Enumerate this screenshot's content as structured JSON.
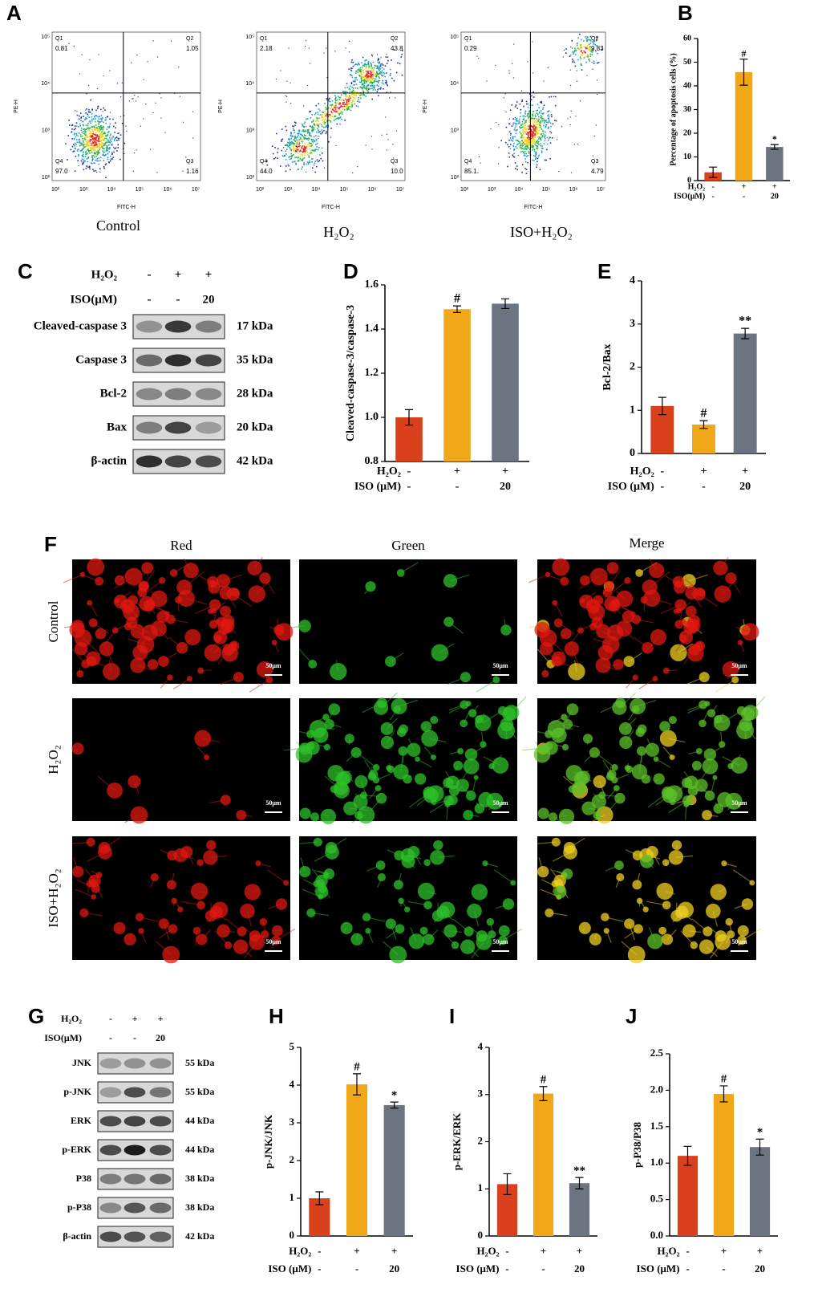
{
  "panel_labels": [
    "A",
    "B",
    "C",
    "D",
    "E",
    "F",
    "G",
    "H",
    "I",
    "J"
  ],
  "flow": {
    "x_label": "FITC-H",
    "y_label": "PE-H",
    "x_ticks": [
      "10²",
      "10³",
      "10⁴",
      "10⁵",
      "10⁶",
      "10⁷"
    ],
    "y_ticks": [
      "10²",
      "10³",
      "10⁴",
      "10⁵"
    ],
    "plots": [
      {
        "name": "Control",
        "quadrants": [
          {
            "id": "Q1",
            "value": "0.81"
          },
          {
            "id": "Q2",
            "value": "1.05"
          },
          {
            "id": "Q3",
            "value": "1.16"
          },
          {
            "id": "Q4",
            "value": "97.0"
          }
        ]
      },
      {
        "name": "H₂O₂",
        "quadrants": [
          {
            "id": "Q1",
            "value": "2.18"
          },
          {
            "id": "Q2",
            "value": "43.8"
          },
          {
            "id": "Q3",
            "value": "10.0"
          },
          {
            "id": "Q4",
            "value": "44.0"
          }
        ]
      },
      {
        "name": "ISO+H₂O₂",
        "quadrants": [
          {
            "id": "Q1",
            "value": "0.29"
          },
          {
            "id": "Q2",
            "value": "9.83"
          },
          {
            "id": "Q3",
            "value": "4.79"
          },
          {
            "id": "Q4",
            "value": "85.1"
          }
        ]
      }
    ]
  },
  "blot_c": {
    "conditions": [
      {
        "label": "H₂O₂",
        "values": [
          "-",
          "+",
          "+"
        ]
      },
      {
        "label": "ISO(μM)",
        "values": [
          "-",
          "-",
          "20"
        ]
      }
    ],
    "rows": [
      {
        "label": "Cleaved-caspase 3",
        "size": "17 kDa"
      },
      {
        "label": "Caspase 3",
        "size": "35 kDa"
      },
      {
        "label": "Bcl-2",
        "size": "28 kDa"
      },
      {
        "label": "Bax",
        "size": "20 kDa"
      },
      {
        "label": "β-actin",
        "size": "42 kDa"
      }
    ]
  },
  "fluorescence": {
    "columns": [
      "Red",
      "Green",
      "Merge"
    ],
    "rows": [
      "Control",
      "H₂O₂",
      "ISO+H₂O₂"
    ],
    "scale_bar": "50μm"
  },
  "blot_g": {
    "conditions": [
      {
        "label": "H₂O₂",
        "values": [
          "-",
          "+",
          "+"
        ]
      },
      {
        "label": "ISO(μM)",
        "values": [
          "-",
          "-",
          "20"
        ]
      }
    ],
    "rows": [
      {
        "label": "JNK",
        "size": "55 kDa"
      },
      {
        "label": "p-JNK",
        "size": "55 kDa"
      },
      {
        "label": "ERK",
        "size": "44 kDa"
      },
      {
        "label": "p-ERK",
        "size": "44 kDa"
      },
      {
        "label": "P38",
        "size": "38 kDa"
      },
      {
        "label": "p-P38",
        "size": "38 kDa"
      },
      {
        "label": "β-actin",
        "size": "42 kDa"
      }
    ]
  },
  "chart_data": [
    {
      "type": "bar",
      "y_label": "Percentage of apoptosis cells (%)",
      "ylim": [
        0,
        60
      ],
      "yticks": [
        0,
        10,
        20,
        30,
        40,
        50,
        60
      ],
      "values": [
        3.5,
        45.8,
        14.2
      ],
      "errors": [
        2.2,
        5.5,
        1.0
      ],
      "colors": [
        "#d9401c",
        "#f0a818",
        "#6b7480"
      ],
      "annotations": [
        null,
        "#",
        "*"
      ],
      "conditions": [
        {
          "label": "H₂O₂",
          "values": [
            "-",
            "+",
            "+"
          ]
        },
        {
          "label": "ISO(μM)",
          "values": [
            "-",
            "-",
            "20"
          ]
        }
      ]
    },
    {
      "type": "bar",
      "y_label": "Cleaved-caspase-3/caspase-3",
      "ylim": [
        0.8,
        1.6
      ],
      "yticks": [
        0.8,
        {
          "value": 1,
          "label": "1.0"
        },
        1.2,
        1.4,
        1.6
      ],
      "values": [
        1.0,
        1.49,
        1.515
      ],
      "errors": [
        0.035,
        0.015,
        0.022
      ],
      "colors": [
        "#d9401c",
        "#f0a818",
        "#6b7480"
      ],
      "annotations": [
        null,
        "#",
        null
      ],
      "conditions": [
        {
          "label": "H₂O₂",
          "values": [
            "-",
            "+",
            "+"
          ]
        },
        {
          "label": "ISO (μM)",
          "values": [
            "-",
            "-",
            "20"
          ]
        }
      ]
    },
    {
      "type": "bar",
      "y_label": "Bcl-2/Bax",
      "ylim": [
        0,
        4
      ],
      "yticks": [
        0,
        1,
        2,
        3,
        4
      ],
      "values": [
        1.1,
        0.67,
        2.78
      ],
      "errors": [
        0.2,
        0.09,
        0.12
      ],
      "colors": [
        "#d9401c",
        "#f0a818",
        "#6b7480"
      ],
      "annotations": [
        null,
        "#",
        "**"
      ],
      "conditions": [
        {
          "label": "H₂O₂",
          "values": [
            "-",
            "+",
            "+"
          ]
        },
        {
          "label": "ISO (μM)",
          "values": [
            "-",
            "-",
            "20"
          ]
        }
      ]
    },
    {
      "type": "bar",
      "y_label": "p-JNK/JNK",
      "ylim": [
        0,
        5
      ],
      "yticks": [
        0,
        1,
        2,
        3,
        4,
        5
      ],
      "values": [
        1.0,
        4.02,
        3.47
      ],
      "errors": [
        0.17,
        0.28,
        0.08
      ],
      "colors": [
        "#d9401c",
        "#f0a818",
        "#6b7480"
      ],
      "annotations": [
        null,
        "#",
        "*"
      ],
      "conditions": [
        {
          "label": "H₂O₂",
          "values": [
            "-",
            "+",
            "+"
          ]
        },
        {
          "label": "ISO (μM)",
          "values": [
            "-",
            "-",
            "20"
          ]
        }
      ]
    },
    {
      "type": "bar",
      "y_label": "p-ERK/ERK",
      "ylim": [
        0,
        4
      ],
      "yticks": [
        0,
        1,
        2,
        3,
        4
      ],
      "values": [
        1.1,
        3.02,
        1.12
      ],
      "errors": [
        0.22,
        0.15,
        0.12
      ],
      "colors": [
        "#d9401c",
        "#f0a818",
        "#6b7480"
      ],
      "annotations": [
        null,
        "#",
        "**"
      ],
      "conditions": [
        {
          "label": "H₂O₂",
          "values": [
            "-",
            "+",
            "+"
          ]
        },
        {
          "label": "ISO (μM)",
          "values": [
            "-",
            "-",
            "20"
          ]
        }
      ]
    },
    {
      "type": "bar",
      "y_label": "p-P38/P38",
      "ylim": [
        0,
        2.5
      ],
      "yticks": [
        {
          "value": 0,
          "label": "0.0"
        },
        0.5,
        {
          "value": 1,
          "label": "1.0"
        },
        1.5,
        {
          "value": 2,
          "label": "2.0"
        },
        2.5
      ],
      "values": [
        1.1,
        1.95,
        1.22
      ],
      "errors": [
        0.13,
        0.11,
        0.11
      ],
      "colors": [
        "#d9401c",
        "#f0a818",
        "#6b7480"
      ],
      "annotations": [
        null,
        "#",
        "*"
      ],
      "conditions": [
        {
          "label": "H₂O₂",
          "values": [
            "-",
            "+",
            "+"
          ]
        },
        {
          "label": "ISO (μM)",
          "values": [
            "-",
            "-",
            "20"
          ]
        }
      ]
    }
  ]
}
